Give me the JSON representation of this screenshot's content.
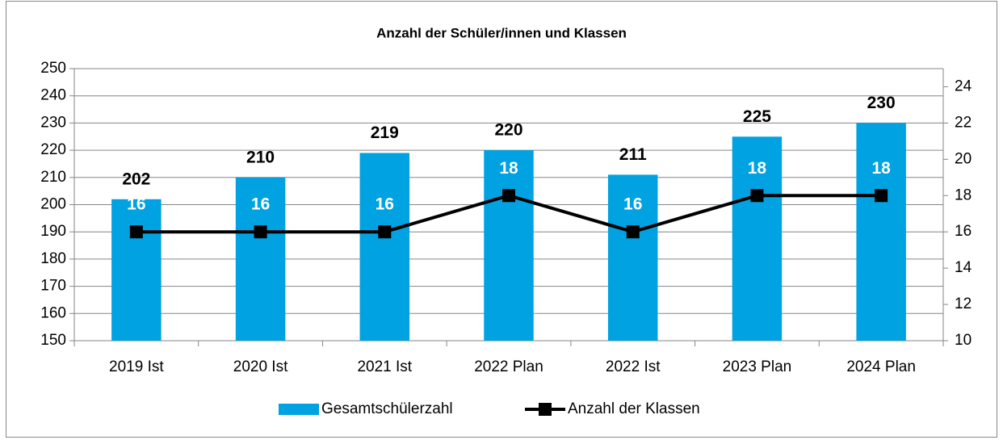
{
  "chart_data": {
    "type": "bar",
    "title": "Anzahl der Schüler/innen und Klassen",
    "categories": [
      "2019 Ist",
      "2020 Ist",
      "2021 Ist",
      "2022 Plan",
      "2022 Ist",
      "2023 Plan",
      "2024 Plan"
    ],
    "series": [
      {
        "name": "Gesamtschülerzahl",
        "color": "#00a2e1",
        "values": [
          202,
          210,
          219,
          220,
          211,
          225,
          230
        ]
      },
      {
        "name": "Anzahl der Klassen",
        "color": "#000000",
        "type": "line",
        "axis": "y2",
        "values": [
          16,
          16,
          16,
          18,
          16,
          18,
          18
        ]
      }
    ],
    "ylim": [
      150,
      250
    ],
    "yticks": [
      150,
      160,
      170,
      180,
      190,
      200,
      210,
      220,
      230,
      240,
      250
    ],
    "y2lim": [
      10,
      25
    ],
    "y2ticks": [
      10,
      12,
      14,
      16,
      18,
      20,
      22,
      24
    ],
    "grid": true,
    "legend": "bottom"
  }
}
